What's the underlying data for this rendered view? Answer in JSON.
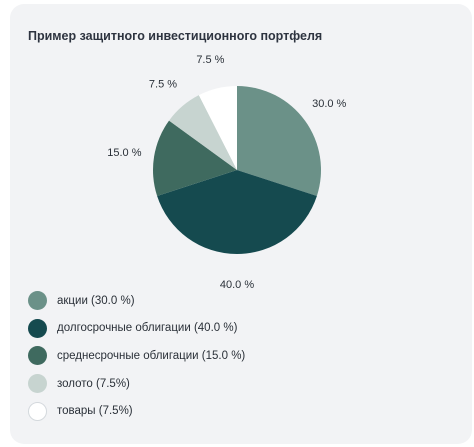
{
  "chart_data": {
    "type": "pie",
    "title": "Пример защитного инвестиционного портфеля",
    "slices": [
      {
        "label": "акции",
        "value": 30.0,
        "value_label": "30.0 %",
        "legend": "акции (30.0 %)",
        "color": "#6b9188"
      },
      {
        "label": "долгосрочные облигации",
        "value": 40.0,
        "value_label": "40.0 %",
        "legend": "долгосрочные облигации (40.0 %)",
        "color": "#154a4f"
      },
      {
        "label": "среднесрочные облигации",
        "value": 15.0,
        "value_label": "15.0 %",
        "legend": "среднесрочные облигации (15.0 %)",
        "color": "#3f6a5f"
      },
      {
        "label": "золото",
        "value": 7.5,
        "value_label": "7.5 %",
        "legend": "золото (7.5%)",
        "color": "#c7d4d0"
      },
      {
        "label": "товары",
        "value": 7.5,
        "value_label": "7.5 %",
        "legend": "товары (7.5%)",
        "color": "#ffffff"
      }
    ],
    "legend_position": "bottom-left",
    "start": "12 o'clock",
    "direction": "clockwise"
  }
}
